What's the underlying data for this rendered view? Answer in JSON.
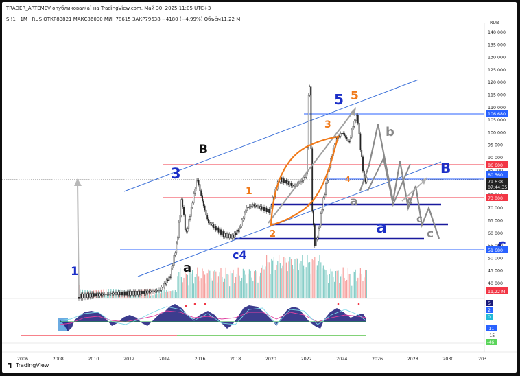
{
  "header": {
    "publisher_line": "TRADER_ARTEMEV опубликовал(а) на TradingView.com, Май 30, 2025 11:05 UTC+3",
    "symbol_line": "SI!1 · 1M · RUS  ОТКР83821  МАКС86000  МИН78615  ЗАКР79638  −4180 (−4,99%)  Объём11,22 M"
  },
  "price_axis": {
    "currency": "RUB",
    "ticks": [
      "140 000",
      "135 000",
      "130 000",
      "125 000",
      "120 000",
      "115 000",
      "110 000",
      "105 000",
      "100 000",
      "95 000",
      "90 000",
      "85 000",
      "80 000",
      "75 000",
      "70 000",
      "65 000",
      "60 000",
      "55 000",
      "50 000",
      "45 000",
      "40 000"
    ],
    "tags": {
      "level_106680": "106 680",
      "level_86600": "86 600",
      "level_80560": "80 560",
      "last_price": "79 638",
      "countdown": "07:44:35",
      "level_73000": "73 000",
      "level_51680": "51 680",
      "volume": "11,22 M"
    }
  },
  "time_axis": {
    "ticks": [
      "2006",
      "2008",
      "2010",
      "2012",
      "2014",
      "2016",
      "2018",
      "2020",
      "2022",
      "2024",
      "2026",
      "2028",
      "2030",
      "203"
    ]
  },
  "oscillator": {
    "tags": [
      "5",
      "2",
      "0",
      "-11",
      "-15",
      "-46"
    ]
  },
  "annotations": {
    "wave_1_low": "1",
    "wave_a_low": "a",
    "wave_b_high": "B",
    "wave_3_left": "3",
    "wave_c4": "c4",
    "wave_1_orange": "1",
    "wave_2_orange": "2",
    "wave_3_orange": "3",
    "wave_4_orange": "4",
    "wave_5_blue": "5",
    "wave_5_orange": "5",
    "wave_a_right": "a",
    "wave_b_gray": "b",
    "wave_b_blue": "B",
    "wave_c_gray_1": "c",
    "wave_c_gray_2": "c",
    "wave_c_gray_3": "c",
    "wave_a_big": "a",
    "wave_c_blue": "c"
  },
  "brand": "TradingView",
  "colors": {
    "up_candle": "#26a69a",
    "down_candle": "#ef5350",
    "blue_level": "#2962ff",
    "red_level": "#f23645",
    "navy_line": "#1a1a9e",
    "orange_marker": "#f07a1a",
    "gray_path": "#8a8a8a"
  }
}
